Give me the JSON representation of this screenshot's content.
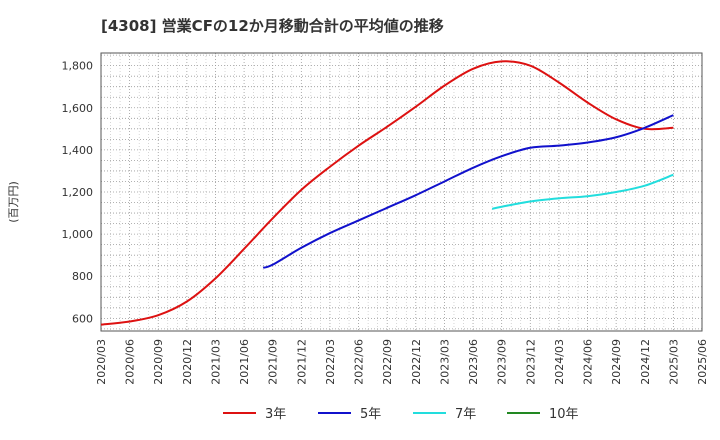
{
  "chart_data": {
    "type": "line",
    "title": "[4308]  営業CFの12か月移動合計の平均値の推移",
    "ylabel": "(百万円)",
    "xlabel": "",
    "ylim": [
      540,
      1860
    ],
    "yticks": [
      600,
      800,
      1000,
      1200,
      1400,
      1600,
      1800
    ],
    "ytick_labels": [
      "600",
      "800",
      "1,000",
      "1,200",
      "1,400",
      "1,600",
      "1,800"
    ],
    "x_ticks": [
      "2020/03",
      "2020/06",
      "2020/09",
      "2020/12",
      "2021/03",
      "2021/06",
      "2021/09",
      "2021/12",
      "2022/03",
      "2022/06",
      "2022/09",
      "2022/12",
      "2023/03",
      "2023/06",
      "2023/09",
      "2023/12",
      "2024/03",
      "2024/06",
      "2024/09",
      "2024/12",
      "2025/03",
      "2025/06"
    ],
    "grid": true,
    "legend_position": "bottom",
    "series": [
      {
        "name": "3年",
        "color": "#dd1111",
        "points": [
          [
            "2020/03",
            570
          ],
          [
            "2020/06",
            585
          ],
          [
            "2020/09",
            615
          ],
          [
            "2020/12",
            680
          ],
          [
            "2021/03",
            790
          ],
          [
            "2021/06",
            930
          ],
          [
            "2021/09",
            1075
          ],
          [
            "2021/12",
            1210
          ],
          [
            "2022/03",
            1320
          ],
          [
            "2022/06",
            1420
          ],
          [
            "2022/09",
            1510
          ],
          [
            "2022/12",
            1605
          ],
          [
            "2023/03",
            1705
          ],
          [
            "2023/06",
            1785
          ],
          [
            "2023/09",
            1820
          ],
          [
            "2023/12",
            1800
          ],
          [
            "2024/03",
            1720
          ],
          [
            "2024/06",
            1625
          ],
          [
            "2024/09",
            1545
          ],
          [
            "2024/12",
            1500
          ],
          [
            "2025/03",
            1505
          ]
        ]
      },
      {
        "name": "5年",
        "color": "#1111cc",
        "points": [
          [
            "2021/08",
            840
          ],
          [
            "2021/09",
            855
          ],
          [
            "2021/12",
            935
          ],
          [
            "2022/03",
            1005
          ],
          [
            "2022/06",
            1065
          ],
          [
            "2022/09",
            1125
          ],
          [
            "2022/12",
            1185
          ],
          [
            "2023/03",
            1250
          ],
          [
            "2023/06",
            1315
          ],
          [
            "2023/09",
            1370
          ],
          [
            "2023/12",
            1410
          ],
          [
            "2024/03",
            1420
          ],
          [
            "2024/06",
            1435
          ],
          [
            "2024/09",
            1460
          ],
          [
            "2024/12",
            1505
          ],
          [
            "2025/03",
            1565
          ]
        ]
      },
      {
        "name": "7年",
        "color": "#22dddd",
        "points": [
          [
            "2023/08",
            1120
          ],
          [
            "2023/09",
            1130
          ],
          [
            "2023/12",
            1155
          ],
          [
            "2024/03",
            1170
          ],
          [
            "2024/06",
            1180
          ],
          [
            "2024/09",
            1200
          ],
          [
            "2024/12",
            1230
          ],
          [
            "2025/03",
            1282
          ]
        ]
      },
      {
        "name": "10年",
        "color": "#228822",
        "points": []
      }
    ]
  }
}
